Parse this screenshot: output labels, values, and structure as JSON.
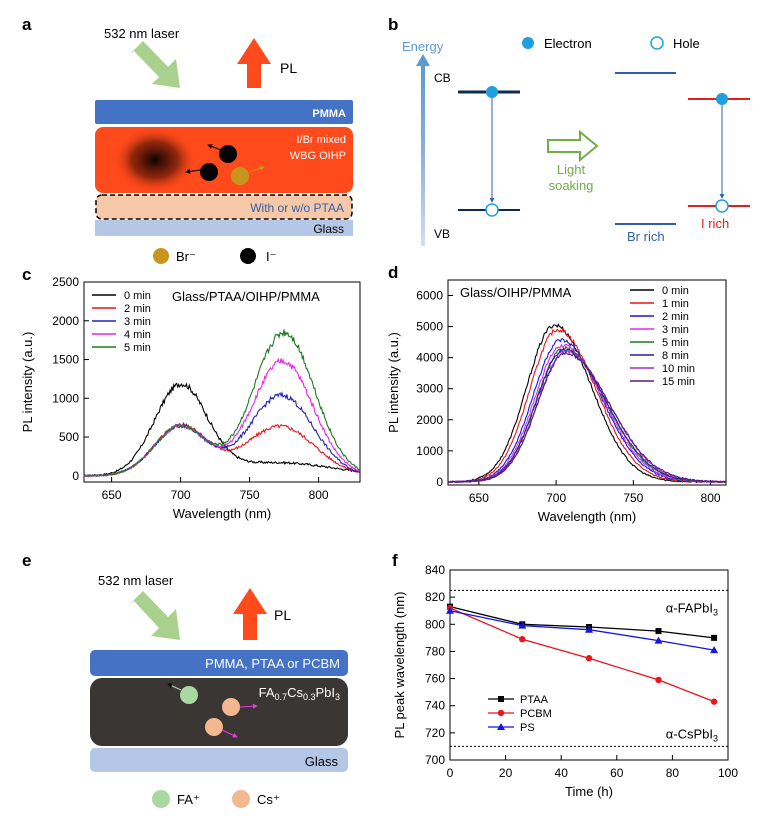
{
  "panels": {
    "a": {
      "letter": "a",
      "laser_label": "532 nm laser",
      "pl_label": "PL",
      "pmma_label": "PMMA",
      "oihp_line1": "I/Br mixed",
      "oihp_line2": "WBG OIHP",
      "ptaa_label": "With or w/o PTAA",
      "glass_label": "Glass",
      "legend_br": "Br⁻",
      "legend_i": "I⁻",
      "colors": {
        "pmma": "#4472c4",
        "oihp": "#ff4a1c",
        "ptaa": "#f6c8a8",
        "glass": "#b4c7e7",
        "br": "#c8961e",
        "i": "#000000",
        "laser": "#a9d18e",
        "pl": "#ff4a1c"
      }
    },
    "b": {
      "letter": "b",
      "energy_label": "Energy",
      "cb_label": "CB",
      "vb_label": "VB",
      "electron_label": "Electron",
      "hole_label": "Hole",
      "light_line1": "Light",
      "light_line2": "soaking",
      "br_rich": "Br rich",
      "i_rich": "I rich",
      "colors": {
        "electron": "#1ea0e0",
        "br_rich": "#2e5fa8",
        "i_rich": "#e02020",
        "light": "#70ad47"
      }
    },
    "e": {
      "letter": "e",
      "laser_label": "532 nm laser",
      "pl_label": "PL",
      "top_layer_label": "PMMA, PTAA or PCBM",
      "perovskite_label": "FA0.7Cs0.3PbI3",
      "glass_label": "Glass",
      "legend_fa": "FA⁺",
      "legend_cs": "Cs⁺",
      "colors": {
        "top": "#4472c4",
        "perovskite": "#3a3633",
        "glass": "#b4c7e7",
        "fa": "#a9d8a0",
        "cs": "#f4b890"
      }
    }
  },
  "chart_data": [
    {
      "id": "c",
      "letter": "c",
      "type": "line",
      "annotation": "Glass/PTAA/OIHP/PMMA",
      "xlabel": "Wavelength (nm)",
      "ylabel": "PL intensity (a.u.)",
      "xlim": [
        630,
        830
      ],
      "ylim": [
        -80,
        2500
      ],
      "xticks": [
        650,
        700,
        750,
        800
      ],
      "yticks": [
        0,
        500,
        1000,
        1500,
        2000,
        2500
      ],
      "series": [
        {
          "name": "0 min",
          "color": "#000000",
          "peaks": [
            [
              700,
              1150,
              19
            ],
            [
              770,
              170,
              40
            ]
          ]
        },
        {
          "name": "2 min",
          "color": "#e8141e",
          "peaks": [
            [
              700,
              650,
              19
            ],
            [
              772,
              640,
              25
            ]
          ]
        },
        {
          "name": "3 min",
          "color": "#2323b4",
          "peaks": [
            [
              700,
              640,
              19
            ],
            [
              773,
              1040,
              23
            ]
          ]
        },
        {
          "name": "4 min",
          "color": "#e628e6",
          "peaks": [
            [
              700,
              640,
              19
            ],
            [
              774,
              1480,
              22
            ]
          ]
        },
        {
          "name": "5 min",
          "color": "#1e7a1e",
          "peaks": [
            [
              700,
              640,
              19
            ],
            [
              775,
              1850,
              22
            ]
          ]
        }
      ]
    },
    {
      "id": "d",
      "letter": "d",
      "type": "line",
      "annotation": "Glass/OIHP/PMMA",
      "xlabel": "Wavelength (nm)",
      "ylabel": "PL intensity (a.u.)",
      "xlim": [
        630,
        810
      ],
      "ylim": [
        -100,
        6500
      ],
      "xticks": [
        650,
        700,
        750,
        800
      ],
      "yticks": [
        0,
        1000,
        2000,
        3000,
        4000,
        5000,
        6000
      ],
      "series": [
        {
          "name": "0 min",
          "color": "#000000",
          "peak": [
            699,
            5050,
            18,
            24
          ]
        },
        {
          "name": "1 min",
          "color": "#e8141e",
          "peak": [
            701,
            4900,
            18,
            25
          ]
        },
        {
          "name": "2 min",
          "color": "#1414e6",
          "peak": [
            703,
            4550,
            18,
            26
          ]
        },
        {
          "name": "3 min",
          "color": "#e628e6",
          "peak": [
            704,
            4400,
            18,
            26.5
          ]
        },
        {
          "name": "5 min",
          "color": "#1e7a1e",
          "peak": [
            705,
            4300,
            18,
            27
          ]
        },
        {
          "name": "8 min",
          "color": "#2020a0",
          "peak": [
            705,
            4250,
            18,
            27.5
          ]
        },
        {
          "name": "10 min",
          "color": "#9a30d0",
          "peak": [
            706,
            4200,
            18,
            28
          ]
        },
        {
          "name": "15 min",
          "color": "#5a1a7a",
          "peak": [
            706,
            4150,
            18,
            28.5
          ]
        }
      ]
    },
    {
      "id": "f",
      "letter": "f",
      "type": "line",
      "xlabel": "Time (h)",
      "ylabel": "PL peak wavelength (nm)",
      "xlim": [
        0,
        100
      ],
      "ylim": [
        700,
        840
      ],
      "xticks": [
        0,
        20,
        40,
        60,
        80,
        100
      ],
      "yticks": [
        700,
        720,
        740,
        760,
        780,
        800,
        820,
        840
      ],
      "reference_lines": [
        {
          "y": 825,
          "label": "α-FAPbI3"
        },
        {
          "y": 710,
          "label": "α-CsPbI3"
        }
      ],
      "series": [
        {
          "name": "PTAA",
          "color": "#000000",
          "marker": "square",
          "x": [
            0,
            26,
            50,
            75,
            95
          ],
          "y": [
            813,
            800,
            798,
            795,
            790
          ]
        },
        {
          "name": "PCBM",
          "color": "#e8141e",
          "marker": "circle",
          "x": [
            0,
            26,
            50,
            75,
            95
          ],
          "y": [
            812,
            789,
            775,
            759,
            743
          ]
        },
        {
          "name": "PS",
          "color": "#1414e6",
          "marker": "triangle",
          "x": [
            0,
            26,
            50,
            75,
            95
          ],
          "y": [
            810,
            799,
            796,
            788,
            781
          ]
        }
      ]
    }
  ]
}
